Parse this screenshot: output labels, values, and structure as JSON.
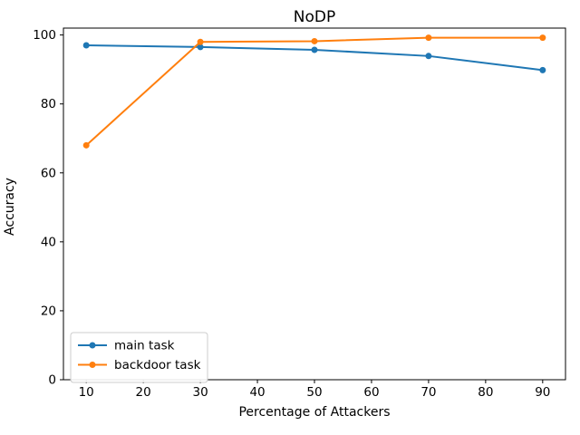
{
  "figure": {
    "background": "#ffffff",
    "spine_color": "#000000",
    "tick_color": "#000000"
  },
  "chart_data": {
    "type": "line",
    "title": "NoDP",
    "xlabel": "Percentage of Attackers",
    "ylabel": "Accuracy",
    "x": [
      10,
      30,
      50,
      70,
      90
    ],
    "series": [
      {
        "name": "main task",
        "color": "#1f77b4",
        "values": [
          97,
          96.5,
          95.7,
          93.9,
          89.8
        ]
      },
      {
        "name": "backdoor task",
        "color": "#ff7f0e",
        "values": [
          68,
          98,
          98.2,
          99.2,
          99.2
        ]
      }
    ],
    "xticks": [
      10,
      20,
      30,
      40,
      50,
      60,
      70,
      80,
      90
    ],
    "yticks": [
      0,
      20,
      40,
      60,
      80,
      100
    ],
    "xlim": [
      6,
      94
    ],
    "ylim": [
      0,
      102
    ],
    "grid": false,
    "legend": {
      "position": "lower left",
      "border_color": "#cccccc",
      "background": "#ffffff"
    },
    "line_width": 2,
    "marker": "circle",
    "marker_radius": 3.5
  }
}
